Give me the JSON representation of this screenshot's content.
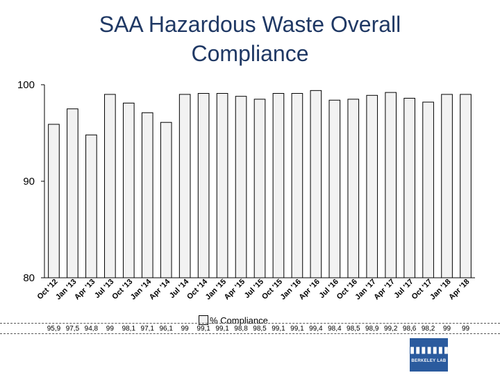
{
  "title_line1": "SAA Hazardous Waste Overall",
  "title_line2": "Compliance",
  "logo": {
    "text": "BERKELEY LAB",
    "glyph": "▮▮▮▮▮▮▮"
  },
  "colors": {
    "bar_fill": "#f2f2f2",
    "bar_stroke": "#000000",
    "title": "#1f3864",
    "logo_bg": "#2b5b9e"
  },
  "chart_data": {
    "type": "bar",
    "title": "SAA Hazardous Waste Overall Compliance",
    "xlabel": "",
    "ylabel": "",
    "ylim": [
      80,
      100
    ],
    "yticks": [
      80,
      90,
      100
    ],
    "grid": false,
    "legend": "bottom",
    "categories": [
      "Oct '12",
      "Jan '13",
      "Apr '13",
      "Jul '13",
      "Oct '13",
      "Jan '14",
      "Apr '14",
      "Jul '14",
      "Oct '14",
      "Jan '15",
      "Apr '15",
      "Jul '15",
      "Oct '15",
      "Jan '16",
      "Apr '16",
      "Jul '16",
      "Oct '16",
      "Jan '17",
      "Apr '17",
      "Jul '17",
      "Oct '17",
      "Jan '18",
      "Apr '18"
    ],
    "series": [
      {
        "name": "% Compliance",
        "values": [
          95.9,
          97.5,
          94.8,
          99,
          98.1,
          97.1,
          96.1,
          99,
          99.1,
          99.1,
          98.8,
          98.5,
          99.1,
          99.1,
          99.4,
          98.4,
          98.5,
          98.9,
          99.2,
          98.6,
          98.2,
          99,
          99
        ],
        "labels": [
          "95,9",
          "97,5",
          "94,8",
          "99",
          "98,1",
          "97,1",
          "96,1",
          "99",
          "99,1",
          "99,1",
          "98,8",
          "98,5",
          "99,1",
          "99,1",
          "99,4",
          "98,4",
          "98,5",
          "98,9",
          "99,2",
          "98,6",
          "98,2",
          "99",
          "99"
        ]
      }
    ]
  }
}
